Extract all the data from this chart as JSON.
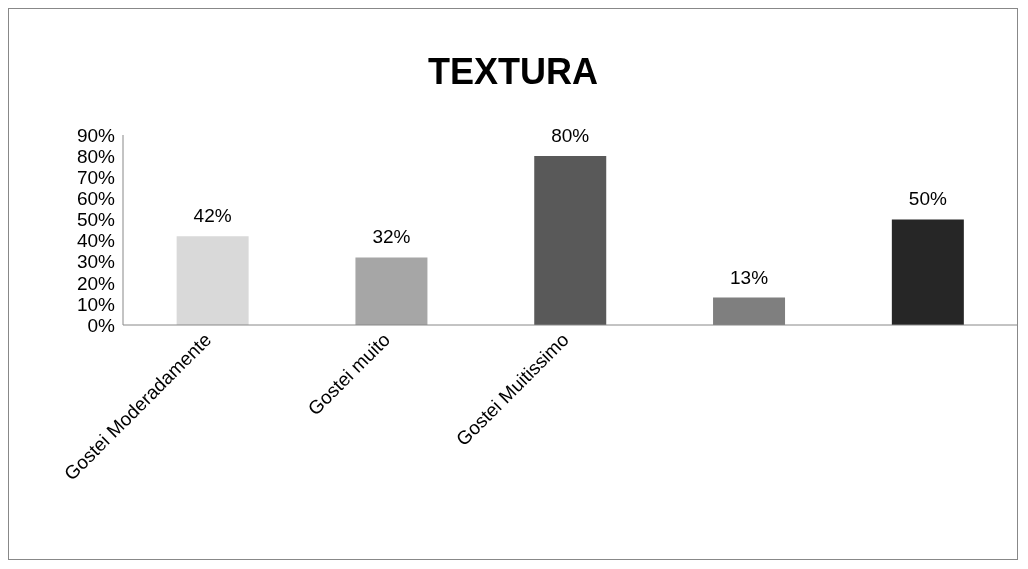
{
  "chart_data": {
    "type": "bar",
    "title": "TEXTURA",
    "categories": [
      "Gostei Moderadamente",
      "Gostei muito",
      "Gostei Muitissimo",
      null,
      null
    ],
    "values": [
      42,
      32,
      80,
      13,
      50
    ],
    "value_labels": [
      "42%",
      "32%",
      "80%",
      "13%",
      "50%"
    ],
    "colors": [
      "#d9d9d9",
      "#a6a6a6",
      "#595959",
      "#7f7f7f",
      "#262626"
    ],
    "ylim": [
      0,
      90
    ],
    "yticks": [
      {
        "value": 0,
        "label": "0%"
      },
      {
        "value": 10,
        "label": "10%"
      },
      {
        "value": 20,
        "label": "20%"
      },
      {
        "value": 30,
        "label": "30%"
      },
      {
        "value": 40,
        "label": "40%"
      },
      {
        "value": 50,
        "label": "50%"
      },
      {
        "value": 60,
        "label": "60%"
      },
      {
        "value": 70,
        "label": "70%"
      },
      {
        "value": 80,
        "label": "80%"
      },
      {
        "value": 90,
        "label": "90%"
      }
    ],
    "grid": false,
    "legend": false
  }
}
